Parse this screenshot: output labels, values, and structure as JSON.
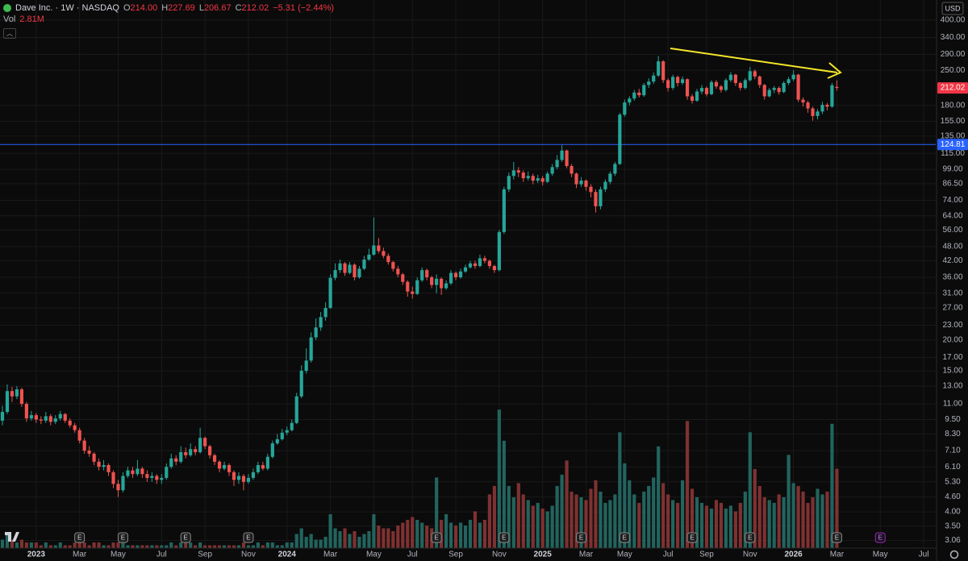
{
  "header": {
    "symbol": "Dave Inc. · 1W · NASDAQ",
    "quote": [
      {
        "key": "O",
        "value": "214.00"
      },
      {
        "key": "H",
        "value": "227.69"
      },
      {
        "key": "L",
        "value": "206.67"
      },
      {
        "key": "C",
        "value": "212.02"
      }
    ],
    "change": "−5.31 (−2.44%)",
    "volume_label": "Vol",
    "volume": "2.81M"
  },
  "currency": "USD",
  "chart_data": {
    "type": "candlestick",
    "categories": [
      null,
      null,
      null,
      null,
      null,
      null,
      null,
      "2023",
      null,
      null,
      null,
      null,
      null,
      null,
      null,
      null,
      "Mar",
      null,
      null,
      null,
      null,
      null,
      null,
      null,
      "May",
      null,
      null,
      null,
      null,
      null,
      null,
      null,
      null,
      "Jul",
      null,
      null,
      null,
      null,
      null,
      null,
      null,
      null,
      "Sep",
      null,
      null,
      null,
      null,
      null,
      null,
      null,
      null,
      "Nov",
      null,
      null,
      null,
      null,
      null,
      null,
      null,
      "2024",
      null,
      null,
      null,
      null,
      null,
      null,
      null,
      null,
      "Mar",
      null,
      null,
      null,
      null,
      null,
      null,
      null,
      null,
      "May",
      null,
      null,
      null,
      null,
      null,
      null,
      null,
      "Jul",
      null,
      null,
      null,
      null,
      null,
      null,
      null,
      null,
      "Sep",
      null,
      null,
      null,
      null,
      null,
      null,
      null,
      null,
      "Nov",
      null,
      null,
      null,
      null,
      null,
      null,
      null,
      null,
      "2025",
      null,
      null,
      null,
      null,
      null,
      null,
      null,
      null,
      "Mar",
      null,
      null,
      null,
      null,
      null,
      null,
      null,
      "May",
      null,
      null,
      null,
      null,
      null,
      null,
      null,
      null,
      "Jul",
      null,
      null,
      null,
      null,
      null,
      null,
      null,
      "Sep",
      null,
      null,
      null,
      null,
      null,
      null,
      null,
      null,
      "Nov",
      null,
      null,
      null,
      null,
      null,
      null,
      null,
      null,
      "2026",
      null,
      null,
      null,
      null,
      null,
      null,
      null,
      null,
      "Mar",
      null,
      null,
      null,
      null,
      null,
      null,
      null,
      null,
      "May",
      null,
      null,
      null,
      null,
      null,
      null,
      null,
      null,
      "Jul",
      null,
      null
    ],
    "open": [
      9.4,
      10.2,
      12.4,
      11.8,
      12.6,
      11.0,
      9.6,
      9.9,
      9.5,
      9.4,
      9.8,
      9.3,
      9.6,
      10.0,
      9.4,
      9.0,
      8.6,
      7.8,
      7.1,
      6.9,
      6.4,
      6.1,
      6.2,
      5.8,
      5.2,
      4.9,
      5.6,
      5.9,
      5.7,
      6.0,
      5.7,
      5.5,
      5.6,
      5.4,
      5.5,
      6.1,
      6.6,
      6.4,
      7.0,
      6.8,
      7.2,
      7.0,
      8.0,
      7.4,
      6.8,
      6.4,
      6.0,
      6.2,
      5.8,
      5.4,
      5.6,
      5.3,
      5.5,
      5.8,
      6.2,
      6.0,
      6.7,
      7.6,
      7.9,
      8.4,
      8.6,
      9.2,
      11.8,
      15.0,
      16.5,
      20.5,
      22.5,
      24.8,
      27.0,
      35.8,
      38.5,
      41.0,
      37.5,
      40.5,
      36.0,
      39.0,
      42.5,
      44.5,
      48.5,
      46.0,
      44.0,
      41.5,
      39.0,
      37.0,
      34.5,
      31.5,
      30.8,
      35.0,
      38.5,
      36.0,
      33.5,
      35.5,
      32.5,
      34.0,
      37.5,
      36.0,
      38.0,
      39.5,
      41.0,
      40.0,
      43.0,
      42.0,
      40.0,
      38.5,
      55.0,
      82.0,
      93.0,
      98.0,
      96.0,
      91.0,
      93.0,
      89.0,
      91.0,
      88.0,
      95.0,
      101.0,
      108.0,
      118.0,
      102.0,
      95.0,
      86.0,
      89.0,
      84.0,
      80.0,
      70.0,
      82.0,
      88.0,
      95.0,
      104.0,
      165.0,
      185.0,
      192.0,
      203.0,
      198.0,
      218.0,
      225.0,
      238.0,
      272.0,
      228.0,
      212.0,
      235.0,
      222.0,
      230.0,
      196.0,
      188.0,
      205.0,
      212.0,
      200.0,
      224.0,
      215.0,
      208.0,
      228.0,
      240.0,
      222.0,
      212.0,
      228.0,
      248.0,
      236.0,
      218.0,
      196.0,
      208.0,
      212.0,
      204.0,
      222.0,
      230.0,
      240.0,
      190.0,
      185.0,
      175.0,
      163.0,
      170.0,
      181.0,
      178.0,
      214.0,
      null,
      null,
      null,
      null,
      null,
      null,
      null,
      null,
      null,
      null,
      null,
      null,
      null,
      null,
      null,
      null,
      null,
      null,
      null,
      null
    ],
    "high": [
      10.8,
      13.2,
      12.9,
      13.0,
      12.8,
      11.2,
      10.3,
      10.1,
      9.8,
      10.2,
      10.0,
      9.9,
      10.3,
      10.1,
      9.6,
      9.2,
      8.8,
      8.0,
      7.4,
      7.0,
      6.6,
      6.5,
      6.3,
      5.9,
      5.4,
      5.8,
      6.1,
      6.1,
      6.5,
      6.1,
      5.9,
      5.8,
      5.7,
      5.7,
      6.3,
      6.9,
      6.8,
      7.4,
      7.3,
      7.6,
      7.4,
      8.8,
      8.1,
      7.5,
      6.9,
      6.5,
      6.4,
      6.3,
      5.9,
      5.8,
      5.7,
      5.7,
      6.0,
      6.4,
      6.4,
      6.9,
      7.8,
      8.3,
      8.7,
      8.9,
      9.5,
      12.2,
      15.8,
      18.5,
      21.5,
      24.5,
      26.0,
      28.5,
      37.0,
      41.0,
      42.5,
      41.5,
      41.5,
      41.0,
      40.0,
      44.0,
      47.0,
      63.0,
      52.0,
      47.5,
      45.0,
      42.0,
      40.0,
      37.5,
      35.0,
      33.0,
      36.0,
      39.5,
      39.0,
      36.5,
      37.0,
      36.0,
      35.0,
      38.5,
      38.0,
      39.0,
      40.5,
      42.0,
      42.0,
      44.5,
      44.0,
      42.5,
      40.5,
      56.0,
      84.0,
      96.0,
      106.0,
      101.0,
      98.0,
      97.0,
      95.0,
      94.0,
      93.0,
      97.0,
      104.0,
      113.0,
      124.0,
      119.0,
      104.0,
      96.0,
      92.0,
      90.0,
      86.0,
      82.0,
      84.0,
      90.0,
      97.0,
      106.0,
      168.0,
      190.0,
      196.0,
      208.0,
      210.0,
      222.0,
      232.0,
      245.0,
      286.0,
      275.0,
      232.0,
      240.0,
      238.0,
      236.0,
      232.0,
      200.0,
      210.0,
      218.0,
      215.0,
      228.0,
      228.0,
      218.0,
      232.0,
      246.0,
      242.0,
      225.0,
      232.0,
      258.0,
      252.0,
      238.0,
      220.0,
      212.0,
      216.0,
      215.0,
      226.0,
      235.0,
      250.0,
      242.0,
      194.0,
      188.0,
      178.0,
      174.0,
      186.0,
      184.0,
      222.0,
      227.69,
      null,
      null,
      null,
      null,
      null,
      null,
      null,
      null,
      null,
      null,
      null,
      null,
      null,
      null,
      null,
      null,
      null,
      null,
      null,
      null
    ],
    "low": [
      9.0,
      10.0,
      11.2,
      11.5,
      10.7,
      9.3,
      9.4,
      9.2,
      9.1,
      9.2,
      9.0,
      9.1,
      9.4,
      9.2,
      8.8,
      8.4,
      7.6,
      6.9,
      6.7,
      6.2,
      5.9,
      5.9,
      5.6,
      5.0,
      4.6,
      4.8,
      5.5,
      5.5,
      5.6,
      5.5,
      5.3,
      5.3,
      5.2,
      5.2,
      5.4,
      6.0,
      6.2,
      6.3,
      6.6,
      6.7,
      6.8,
      6.9,
      7.2,
      6.6,
      6.2,
      5.8,
      5.9,
      5.6,
      5.1,
      5.2,
      4.9,
      5.2,
      5.4,
      5.7,
      5.9,
      5.9,
      6.6,
      7.5,
      7.8,
      8.2,
      8.5,
      9.1,
      11.6,
      14.6,
      16.2,
      20.0,
      21.8,
      24.0,
      26.8,
      35.0,
      37.5,
      36.5,
      37.0,
      35.0,
      35.5,
      38.5,
      42.0,
      44.0,
      45.0,
      43.0,
      40.5,
      38.0,
      36.0,
      33.5,
      30.0,
      29.5,
      30.5,
      34.5,
      35.0,
      32.5,
      31.0,
      30.5,
      32.0,
      33.5,
      35.0,
      35.5,
      37.5,
      39.0,
      39.0,
      39.5,
      41.0,
      39.0,
      37.5,
      38.0,
      54.0,
      80.0,
      90.0,
      92.0,
      88.0,
      89.0,
      86.0,
      87.0,
      85.0,
      87.0,
      93.0,
      99.0,
      106.0,
      100.0,
      92.0,
      83.0,
      84.0,
      81.0,
      76.0,
      66.0,
      68.0,
      80.0,
      86.0,
      93.0,
      103.0,
      162.0,
      180.0,
      188.0,
      194.0,
      195.0,
      212.0,
      220.0,
      235.0,
      222.0,
      205.0,
      208.0,
      215.0,
      218.0,
      190.0,
      183.0,
      186.0,
      200.0,
      196.0,
      198.0,
      210.0,
      203.0,
      205.0,
      224.0,
      216.0,
      207.0,
      209.0,
      225.0,
      230.0,
      212.0,
      190.0,
      194.0,
      202.0,
      199.0,
      202.0,
      218.0,
      226.0,
      186.0,
      178.0,
      168.0,
      156.0,
      158.0,
      166.0,
      172.0,
      176.0,
      206.67,
      null,
      null,
      null,
      null,
      null,
      null,
      null,
      null,
      null,
      null,
      null,
      null,
      null,
      null,
      null,
      null,
      null,
      null,
      null,
      null
    ],
    "close": [
      10.2,
      12.4,
      11.8,
      12.6,
      11.0,
      9.6,
      9.9,
      9.5,
      9.4,
      9.8,
      9.3,
      9.6,
      10.0,
      9.4,
      9.0,
      8.6,
      7.8,
      7.1,
      6.9,
      6.4,
      6.1,
      6.2,
      5.8,
      5.2,
      4.9,
      5.6,
      5.9,
      5.7,
      6.0,
      5.7,
      5.5,
      5.6,
      5.4,
      5.5,
      6.1,
      6.6,
      6.4,
      7.0,
      6.8,
      7.2,
      7.0,
      8.0,
      7.4,
      6.8,
      6.4,
      6.0,
      6.2,
      5.8,
      5.4,
      5.6,
      5.3,
      5.5,
      5.8,
      6.2,
      6.0,
      6.7,
      7.6,
      7.9,
      8.4,
      8.6,
      9.2,
      11.8,
      15.0,
      16.5,
      20.5,
      22.5,
      24.8,
      27.0,
      35.8,
      38.5,
      41.0,
      37.5,
      40.5,
      36.0,
      39.0,
      42.5,
      44.5,
      48.5,
      46.0,
      44.0,
      41.5,
      39.0,
      37.0,
      34.5,
      31.5,
      30.8,
      35.0,
      38.5,
      36.0,
      33.5,
      35.5,
      32.5,
      34.0,
      37.5,
      36.0,
      38.0,
      39.5,
      41.0,
      40.0,
      43.0,
      42.0,
      40.0,
      38.5,
      55.0,
      82.0,
      93.0,
      98.0,
      96.0,
      91.0,
      93.0,
      89.0,
      91.0,
      88.0,
      95.0,
      101.0,
      108.0,
      118.0,
      102.0,
      95.0,
      86.0,
      89.0,
      84.0,
      80.0,
      70.0,
      82.0,
      88.0,
      95.0,
      104.0,
      165.0,
      185.0,
      192.0,
      203.0,
      198.0,
      218.0,
      225.0,
      238.0,
      272.0,
      228.0,
      212.0,
      235.0,
      222.0,
      230.0,
      196.0,
      188.0,
      205.0,
      212.0,
      200.0,
      224.0,
      215.0,
      208.0,
      228.0,
      240.0,
      222.0,
      212.0,
      228.0,
      248.0,
      236.0,
      218.0,
      196.0,
      208.0,
      212.0,
      204.0,
      222.0,
      230.0,
      240.0,
      190.0,
      185.0,
      175.0,
      163.0,
      170.0,
      181.0,
      178.0,
      217.33,
      212.02,
      null,
      null,
      null,
      null,
      null,
      null,
      null,
      null,
      null,
      null,
      null,
      null,
      null,
      null,
      null,
      null,
      null,
      null,
      null,
      null
    ],
    "volume": [
      0.3,
      0.5,
      0.3,
      0.2,
      0.3,
      0.2,
      0.2,
      0.2,
      0.1,
      0.2,
      0.1,
      0.1,
      0.2,
      0.1,
      0.1,
      0.2,
      0.2,
      0.2,
      0.1,
      0.2,
      0.2,
      0.1,
      0.1,
      0.2,
      0.2,
      0.2,
      0.1,
      0.1,
      0.1,
      0.1,
      0.1,
      0.1,
      0.1,
      0.1,
      0.1,
      0.2,
      0.1,
      0.2,
      0.2,
      0.2,
      0.1,
      0.2,
      0.1,
      0.1,
      0.1,
      0.1,
      0.1,
      0.1,
      0.1,
      0.1,
      0.2,
      0.1,
      0.1,
      0.2,
      0.1,
      0.2,
      0.2,
      0.1,
      0.1,
      0.2,
      0.2,
      0.5,
      0.7,
      0.4,
      0.5,
      0.3,
      0.3,
      0.4,
      1.2,
      0.7,
      0.6,
      0.7,
      0.5,
      0.6,
      0.4,
      0.5,
      0.6,
      1.2,
      0.8,
      0.7,
      0.7,
      0.6,
      0.8,
      0.9,
      1.0,
      1.1,
      1.0,
      0.9,
      0.8,
      0.7,
      2.5,
      1.0,
      1.2,
      0.9,
      0.8,
      0.9,
      0.8,
      1.0,
      1.3,
      0.9,
      1.0,
      1.9,
      2.2,
      4.9,
      3.8,
      2.2,
      1.8,
      2.3,
      1.9,
      1.7,
      1.5,
      1.6,
      1.4,
      1.3,
      1.5,
      2.2,
      2.6,
      3.1,
      2.0,
      1.9,
      1.8,
      1.7,
      2.1,
      2.4,
      2.0,
      1.6,
      1.7,
      1.9,
      4.1,
      3.0,
      2.4,
      1.9,
      1.6,
      2.0,
      2.2,
      2.5,
      3.6,
      2.3,
      1.9,
      1.7,
      1.6,
      2.4,
      4.5,
      2.1,
      1.8,
      1.6,
      1.5,
      1.4,
      1.7,
      1.6,
      1.4,
      1.5,
      1.3,
      1.6,
      2.0,
      4.1,
      2.8,
      2.2,
      1.8,
      1.7,
      1.6,
      1.9,
      1.8,
      3.3,
      2.3,
      2.2,
      2.0,
      1.6,
      1.8,
      2.1,
      1.9,
      2.0,
      4.4,
      2.81,
      null,
      null,
      null,
      null,
      null,
      null,
      null,
      null,
      null,
      null,
      null,
      null,
      null,
      null,
      null,
      null,
      null,
      null,
      null,
      null
    ],
    "up_color": "#26a69a",
    "down_color": "#ef5350",
    "volume_up_color": "#22645e",
    "volume_down_color": "#7f3131",
    "log_scale": true,
    "grid": true,
    "ylim": [
      2.85,
      483
    ],
    "yticks": [
      {
        "value": 400,
        "label": "400.00"
      },
      {
        "value": 340,
        "label": "340.00"
      },
      {
        "value": 290,
        "label": "290.00"
      },
      {
        "value": 250,
        "label": "250.00"
      },
      {
        "value": 180,
        "label": "180.00"
      },
      {
        "value": 155,
        "label": "155.00"
      },
      {
        "value": 135,
        "label": "135.00"
      },
      {
        "value": 115,
        "label": "115.00"
      },
      {
        "value": 99,
        "label": "99.00"
      },
      {
        "value": 86.5,
        "label": "86.50"
      },
      {
        "value": 74,
        "label": "74.00"
      },
      {
        "value": 64,
        "label": "64.00"
      },
      {
        "value": 56,
        "label": "56.00"
      },
      {
        "value": 48,
        "label": "48.00"
      },
      {
        "value": 42,
        "label": "42.00"
      },
      {
        "value": 36,
        "label": "36.00"
      },
      {
        "value": 31,
        "label": "31.00"
      },
      {
        "value": 27,
        "label": "27.00"
      },
      {
        "value": 23,
        "label": "23.00"
      },
      {
        "value": 20,
        "label": "20.00"
      },
      {
        "value": 17,
        "label": "17.00"
      },
      {
        "value": 15,
        "label": "15.00"
      },
      {
        "value": 13,
        "label": "13.00"
      },
      {
        "value": 11,
        "label": "11.00"
      },
      {
        "value": 9.5,
        "label": "9.50"
      },
      {
        "value": 8.3,
        "label": "8.30"
      },
      {
        "value": 7.1,
        "label": "7.10"
      },
      {
        "value": 6.1,
        "label": "6.10"
      },
      {
        "value": 5.3,
        "label": "5.30"
      },
      {
        "value": 4.6,
        "label": "4.60"
      },
      {
        "value": 4.0,
        "label": "4.00"
      },
      {
        "value": 3.5,
        "label": "3.50"
      },
      {
        "value": 3.06,
        "label": "3.06"
      }
    ],
    "volume_lim": [
      0,
      19.4
    ],
    "hline": {
      "value": 124.81,
      "label": "124.81",
      "color": "#2962ff"
    },
    "last_price": {
      "value": 212.02,
      "label": "212.02",
      "color": "#f23645"
    },
    "earnings": {
      "label": "E",
      "indices": [
        16,
        25,
        38,
        51,
        90,
        104,
        120,
        129,
        143,
        155,
        173,
        182
      ]
    }
  }
}
